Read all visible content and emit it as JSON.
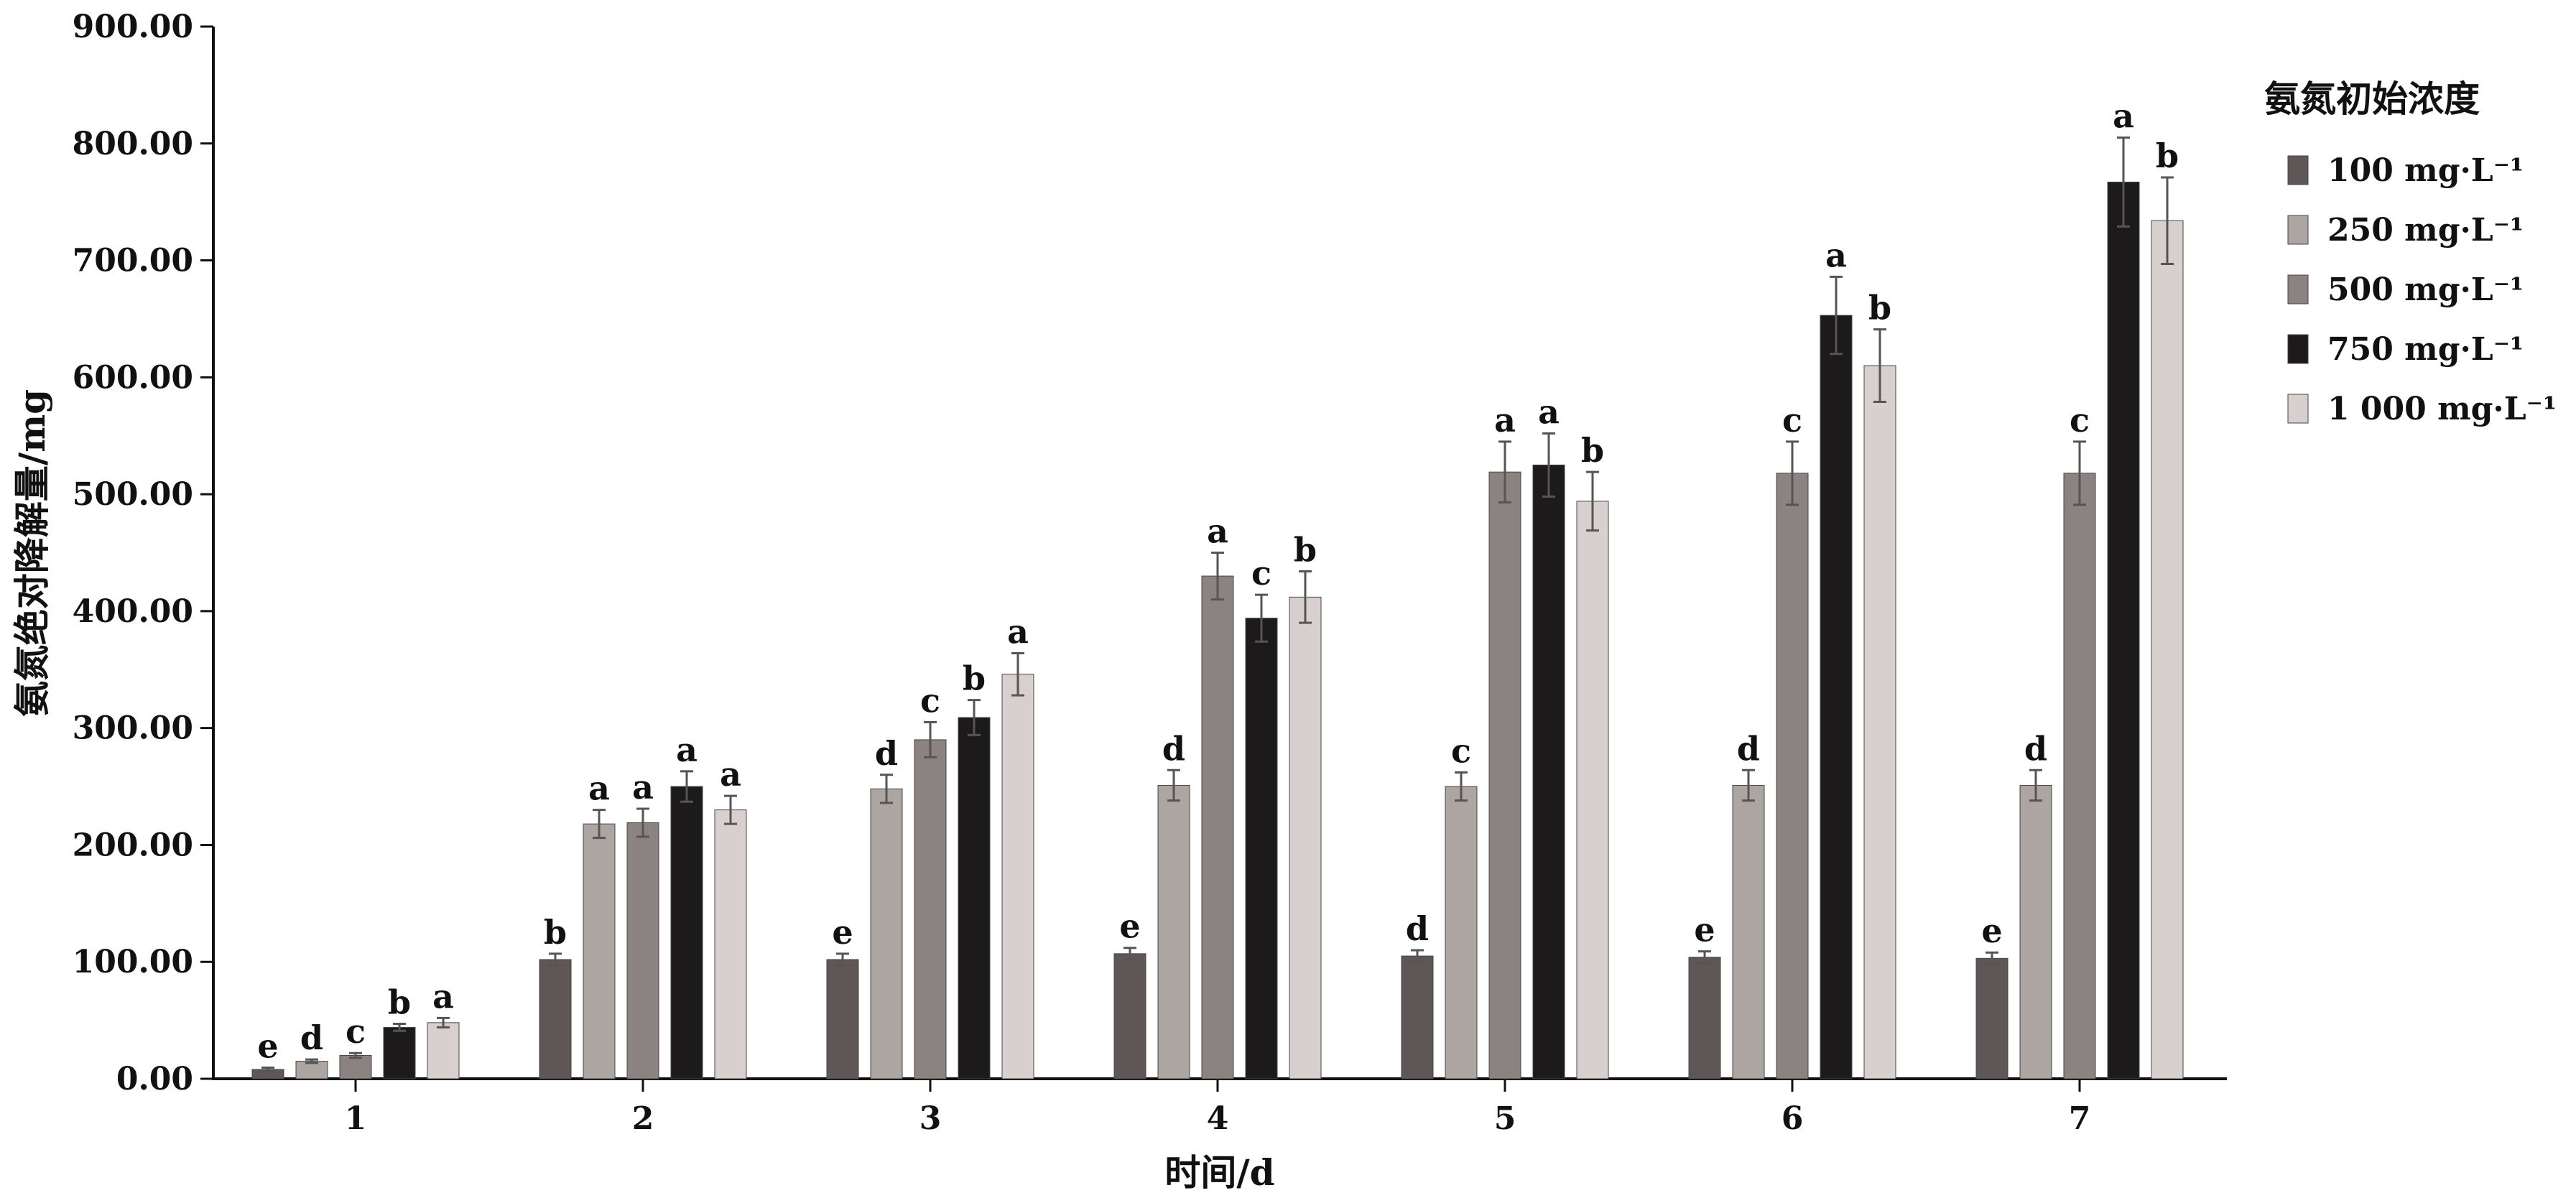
{
  "chart_data": {
    "type": "bar",
    "xlabel": "时间/d",
    "ylabel": "氨氮绝对降解量/mg",
    "ylim": [
      0,
      900
    ],
    "yticks": [
      "0.00",
      "100.00",
      "200.00",
      "300.00",
      "400.00",
      "500.00",
      "600.00",
      "700.00",
      "800.00",
      "900.00"
    ],
    "categories": [
      "1",
      "2",
      "3",
      "4",
      "5",
      "6",
      "7"
    ],
    "grid": false,
    "legend_title": "氨氮初始浓度",
    "legend_position": "right",
    "series": [
      {
        "name": "100 mg·L⁻¹",
        "color": "#5f5757",
        "values": [
          8,
          102,
          102,
          107,
          105,
          104,
          103
        ],
        "errors": [
          1.5,
          5,
          5,
          5,
          5,
          5,
          5
        ],
        "labels": [
          "e",
          "b",
          "e",
          "e",
          "d",
          "e",
          "e"
        ]
      },
      {
        "name": "250 mg·L⁻¹",
        "color": "#ada5a2",
        "values": [
          15,
          218,
          248,
          251,
          250,
          251,
          251
        ],
        "errors": [
          1.5,
          12,
          12,
          13,
          12,
          13,
          13
        ],
        "labels": [
          "d",
          "a",
          "d",
          "d",
          "c",
          "d",
          "d"
        ]
      },
      {
        "name": "500 mg·L⁻¹",
        "color": "#8b8282",
        "values": [
          20,
          219,
          290,
          430,
          519,
          518,
          518
        ],
        "errors": [
          2,
          12,
          15,
          20,
          26,
          27,
          27
        ],
        "labels": [
          "c",
          "a",
          "c",
          "a",
          "a",
          "c",
          "c"
        ]
      },
      {
        "name": "750 mg·L⁻¹",
        "color": "#1c1a1a",
        "values": [
          44,
          250,
          309,
          394,
          525,
          653,
          767
        ],
        "errors": [
          3,
          13,
          15,
          20,
          27,
          33,
          38
        ],
        "labels": [
          "b",
          "a",
          "b",
          "c",
          "a",
          "a",
          "a"
        ]
      },
      {
        "name": "1 000 mg·L⁻¹",
        "color": "#d7d0cf",
        "values": [
          48,
          230,
          346,
          412,
          494,
          610,
          734
        ],
        "errors": [
          4,
          12,
          18,
          22,
          25,
          31,
          37
        ],
        "labels": [
          "a",
          "a",
          "a",
          "b",
          "b",
          "b",
          "b"
        ]
      }
    ]
  }
}
